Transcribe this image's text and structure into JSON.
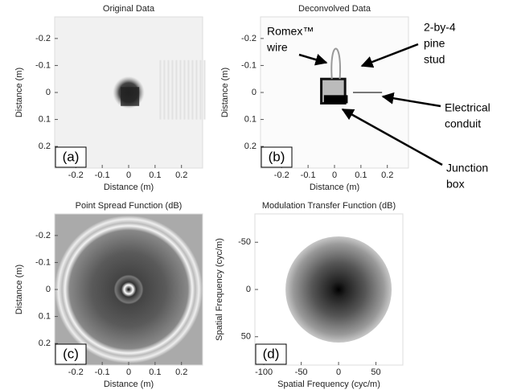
{
  "chart_data": [
    {
      "type": "image",
      "panel_label": "(a)",
      "title": "Original Data",
      "xlabel": "Distance (m)",
      "ylabel": "Distance (m)",
      "xlim": [
        -0.28,
        0.28
      ],
      "ylim": [
        -0.28,
        0.28
      ],
      "y_inverted": true,
      "xticks": [
        -0.2,
        -0.1,
        0,
        0.1,
        0.2
      ],
      "yticks": [
        -0.2,
        -0.1,
        0,
        0.1,
        0.2
      ]
    },
    {
      "type": "image",
      "panel_label": "(b)",
      "title": "Deconvolved Data",
      "xlabel": "Distance (m)",
      "ylabel": "Distance (m)",
      "xlim": [
        -0.28,
        0.28
      ],
      "ylim": [
        -0.28,
        0.28
      ],
      "y_inverted": true,
      "xticks": [
        -0.2,
        -0.1,
        0,
        0.1,
        0.2
      ],
      "yticks": [
        -0.2,
        -0.1,
        0,
        0.1,
        0.2
      ],
      "annotations": [
        {
          "lines": [
            "Romex™",
            "wire"
          ]
        },
        {
          "lines": [
            "2-by-4",
            "pine",
            "stud"
          ]
        },
        {
          "lines": [
            "Electrical",
            "conduit"
          ]
        },
        {
          "lines": [
            "Junction",
            "box"
          ]
        }
      ]
    },
    {
      "type": "image",
      "panel_label": "(c)",
      "title": "Point Spread Function (dB)",
      "xlabel": "Distance (m)",
      "ylabel": "Distance (m)",
      "xlim": [
        -0.28,
        0.28
      ],
      "ylim": [
        -0.28,
        0.28
      ],
      "y_inverted": true,
      "xticks": [
        -0.2,
        -0.1,
        0,
        0.1,
        0.2
      ],
      "yticks": [
        -0.2,
        -0.1,
        0,
        0.1,
        0.2
      ]
    },
    {
      "type": "image",
      "panel_label": "(d)",
      "title": "Modulation Transfer Function (dB)",
      "xlabel": "Spatial Frequency (cyc/m)",
      "ylabel": "Spatial Frequency (cyc/m)",
      "xlim": [
        -112,
        86
      ],
      "ylim": [
        -80,
        80
      ],
      "y_inverted": true,
      "xticks": [
        -100,
        -50,
        0,
        50
      ],
      "yticks": [
        -50,
        0,
        50
      ]
    }
  ]
}
